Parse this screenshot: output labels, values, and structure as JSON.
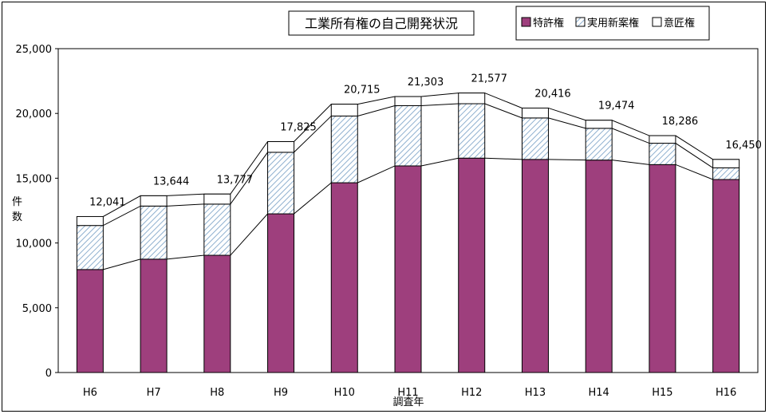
{
  "chart_data": {
    "type": "bar",
    "stacked": true,
    "title": "工業所有権の自己開発状況",
    "xlabel": "調査年",
    "ylabel": "件数",
    "categories": [
      "H6",
      "H7",
      "H8",
      "H9",
      "H10",
      "H11",
      "H12",
      "H13",
      "H14",
      "H15",
      "H16"
    ],
    "series": [
      {
        "name": "特許権",
        "color": "#9e3f7d",
        "pattern": "solid",
        "values": [
          7950,
          8750,
          9050,
          12250,
          14650,
          15950,
          16550,
          16450,
          16400,
          16050,
          14900
        ]
      },
      {
        "name": "実用新案権",
        "color": "#9bbbd6",
        "pattern": "diagonal-hatch",
        "values": [
          3400,
          4100,
          3950,
          4750,
          5150,
          4650,
          4200,
          3200,
          2450,
          1650,
          900
        ]
      },
      {
        "name": "意匠権",
        "color": "#ffffff",
        "pattern": "solid",
        "values": [
          691,
          794,
          777,
          825,
          915,
          703,
          827,
          766,
          624,
          586,
          650
        ]
      }
    ],
    "totals": [
      "12,041",
      "13,644",
      "13,777",
      "17,825",
      "20,715",
      "21,303",
      "21,577",
      "20,416",
      "19,474",
      "18,286",
      "16,450"
    ],
    "ylim": [
      0,
      25000
    ],
    "yticks": [
      "0",
      "5,000",
      "10,000",
      "15,000",
      "20,000",
      "25,000"
    ],
    "grid": false,
    "series_lines": true,
    "legend_position": "top-right"
  }
}
